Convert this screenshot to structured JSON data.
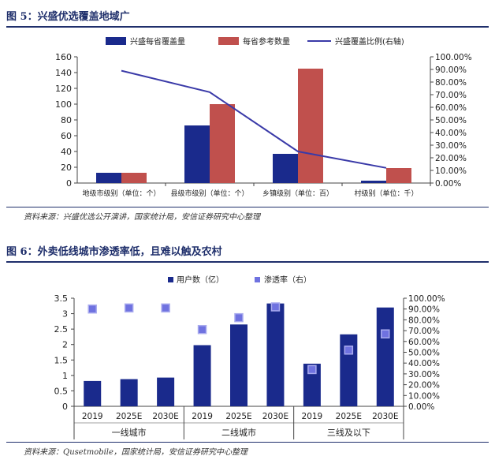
{
  "colors": {
    "navy": "#1a2a8c",
    "red": "#c0504d",
    "line": "#3a3aa8",
    "marker": "#6f72e0",
    "title": "#1f2f6b"
  },
  "figure5": {
    "title": "图 5：兴盛优选覆盖地域广",
    "source": "资料来源：兴盛优选公开演讲，国家统计局，安信证券研究中心整理"
  },
  "figure6": {
    "title": "图 6：外卖低线城市渗透率低，且难以触及农村",
    "source": "资料来源：Qusetmobile，国家统计局，安信证券研究中心整理"
  },
  "chart_data": [
    {
      "type": "bar",
      "categories": [
        "地级市级别（单位：个）",
        "县级市级别（单位：个）",
        "乡镇级别（单位：百）",
        "村级别（单位：千）"
      ],
      "series": [
        {
          "name": "兴盛每省覆盖量",
          "type": "bar",
          "axis": "left",
          "values": [
            13,
            73,
            37,
            3
          ]
        },
        {
          "name": "每省参考数量",
          "type": "bar",
          "axis": "left",
          "values": [
            13,
            100,
            145,
            19
          ]
        },
        {
          "name": "兴盛覆盖比例(右轴)",
          "type": "line",
          "axis": "right",
          "values": [
            0.89,
            0.72,
            0.25,
            0.12
          ]
        }
      ],
      "ylim": [
        0,
        160
      ],
      "yticks": [
        "0",
        "20",
        "40",
        "60",
        "80",
        "100",
        "120",
        "140",
        "160"
      ],
      "y2lim": [
        0,
        1
      ],
      "y2ticks": [
        "0.00%",
        "10.00%",
        "20.00%",
        "30.00%",
        "40.00%",
        "50.00%",
        "60.00%",
        "70.00%",
        "80.00%",
        "90.00%",
        "100.00%"
      ],
      "legend": "top",
      "grid": false
    },
    {
      "type": "bar",
      "groups": [
        {
          "label": "一线城市",
          "categories": [
            "2019",
            "2025E",
            "2030E"
          ]
        },
        {
          "label": "二线城市",
          "categories": [
            "2019",
            "2025E",
            "2030E"
          ]
        },
        {
          "label": "三线及以下",
          "categories": [
            "2019",
            "2025E",
            "2030E"
          ]
        }
      ],
      "series": [
        {
          "name": "用户数（亿）",
          "type": "bar",
          "axis": "left",
          "values": [
            0.82,
            0.88,
            0.93,
            1.98,
            2.65,
            3.33,
            1.38,
            2.33,
            3.2
          ]
        },
        {
          "name": "渗透率（右）",
          "type": "scatter",
          "axis": "right",
          "values": [
            0.9,
            0.91,
            0.91,
            0.71,
            0.82,
            0.92,
            0.34,
            0.52,
            0.67
          ]
        }
      ],
      "ylim": [
        0,
        3.5
      ],
      "yticks": [
        "0",
        "0.5",
        "1",
        "1.5",
        "2",
        "2.5",
        "3",
        "3.5"
      ],
      "y2lim": [
        0,
        1
      ],
      "y2ticks": [
        "0.00%",
        "10.00%",
        "20.00%",
        "30.00%",
        "40.00%",
        "50.00%",
        "60.00%",
        "70.00%",
        "80.00%",
        "90.00%",
        "100.00%"
      ],
      "legend": "top",
      "grid": false
    }
  ]
}
